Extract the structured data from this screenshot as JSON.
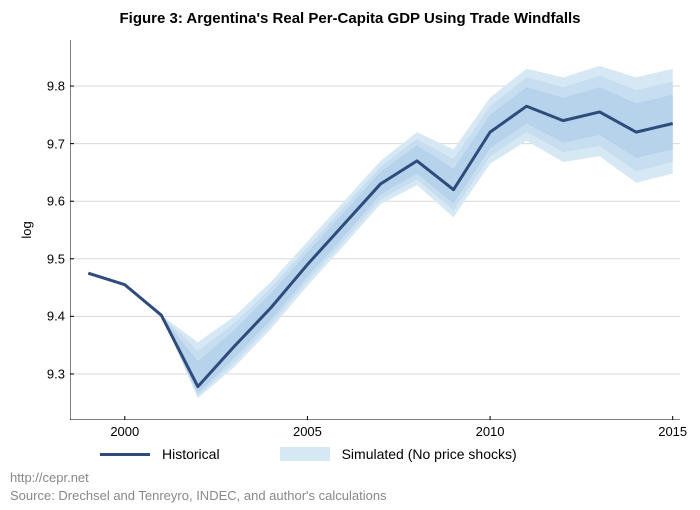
{
  "title": "Figure 3: Argentina's Real Per-Capita GDP Using Trade Windfalls",
  "ylabel": "log",
  "footer_link": "http://cepr.net",
  "footer_source": "Source: Drechsel and Tenreyro, INDEC, and author's calculations",
  "legend": {
    "historical": "Historical",
    "simulated": "Simulated (No price shocks)"
  },
  "chart": {
    "type": "line",
    "xlim": [
      1998.5,
      2015.2
    ],
    "ylim": [
      9.22,
      9.88
    ],
    "ytick_vals": [
      9.3,
      9.4,
      9.5,
      9.6,
      9.7,
      9.8
    ],
    "ytick_labels": [
      "9.3",
      "9.4",
      "9.5",
      "9.6",
      "9.7",
      "9.8"
    ],
    "xtick_vals": [
      2000,
      2005,
      2010,
      2015
    ],
    "xtick_labels": [
      "2000",
      "2005",
      "2010",
      "2015"
    ],
    "background_color": "#ffffff",
    "grid_color": "#d8d8d8",
    "axis_color": "#000000",
    "tick_inside": 4,
    "line_color": "#2f4b7c",
    "line_width": 3,
    "band_colors": [
      "#d7e8f5",
      "#c7ddf0",
      "#b7d2eb"
    ],
    "years": [
      1999,
      2000,
      2001,
      2002,
      2003,
      2004,
      2005,
      2006,
      2007,
      2008,
      2009,
      2010,
      2011,
      2012,
      2013,
      2014,
      2015
    ],
    "historical": [
      9.475,
      9.455,
      9.402,
      9.278,
      9.348,
      9.415,
      9.49,
      9.56,
      9.63,
      9.67,
      9.62,
      9.72,
      9.765,
      9.74,
      9.755,
      9.72,
      9.735
    ],
    "band_outer_hi": [
      9.475,
      9.455,
      9.402,
      9.355,
      9.4,
      9.46,
      9.53,
      9.6,
      9.67,
      9.72,
      9.69,
      9.78,
      9.83,
      9.815,
      9.835,
      9.815,
      9.83
    ],
    "band_outer_lo": [
      9.475,
      9.455,
      9.402,
      9.258,
      9.312,
      9.378,
      9.453,
      9.523,
      9.595,
      9.628,
      9.572,
      9.665,
      9.705,
      9.668,
      9.678,
      9.632,
      9.648
    ],
    "band_mid_hi": [
      9.475,
      9.455,
      9.402,
      9.34,
      9.388,
      9.45,
      9.52,
      9.59,
      9.66,
      9.708,
      9.673,
      9.765,
      9.815,
      9.798,
      9.818,
      9.793,
      9.808
    ],
    "band_mid_lo": [
      9.475,
      9.455,
      9.402,
      9.262,
      9.32,
      9.386,
      9.461,
      9.531,
      9.603,
      9.638,
      9.584,
      9.678,
      9.72,
      9.685,
      9.696,
      9.652,
      9.668
    ],
    "band_inner_hi": [
      9.475,
      9.455,
      9.402,
      9.322,
      9.376,
      9.44,
      9.511,
      9.581,
      9.651,
      9.697,
      9.656,
      9.75,
      9.798,
      9.78,
      9.798,
      9.77,
      9.785
    ],
    "band_inner_lo": [
      9.475,
      9.455,
      9.402,
      9.266,
      9.328,
      9.394,
      9.469,
      9.539,
      9.612,
      9.648,
      9.596,
      9.692,
      9.735,
      9.702,
      9.715,
      9.675,
      9.69
    ]
  }
}
